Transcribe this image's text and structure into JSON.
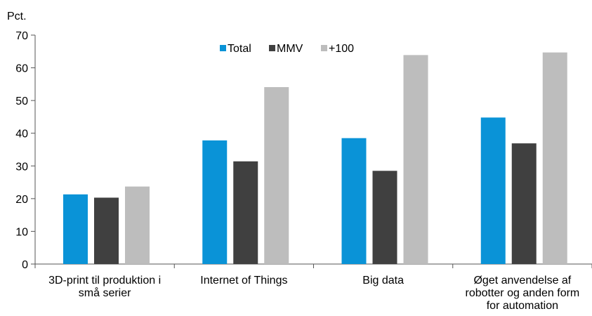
{
  "chart_data": {
    "type": "bar",
    "title": "",
    "ylabel": "Pct.",
    "xlabel": "",
    "ylim": [
      0,
      70
    ],
    "yticks": [
      0,
      10,
      20,
      30,
      40,
      50,
      60,
      70
    ],
    "grid": false,
    "legend_position": "top-center",
    "categories": [
      [
        "3D-print til produktion i",
        "små serier"
      ],
      [
        "Internet of Things"
      ],
      [
        "Big data"
      ],
      [
        "Øget anvendelse af",
        "robotter og anden form",
        "for automation"
      ]
    ],
    "series": [
      {
        "name": "Total",
        "color": "#0a93d7",
        "values": [
          21.3,
          37.8,
          38.5,
          44.8
        ]
      },
      {
        "name": "MMV",
        "color": "#404040",
        "values": [
          20.3,
          31.4,
          28.5,
          36.9
        ]
      },
      {
        "name": "+100",
        "color": "#bdbdbd",
        "values": [
          23.7,
          54.1,
          63.9,
          64.7
        ]
      }
    ]
  }
}
